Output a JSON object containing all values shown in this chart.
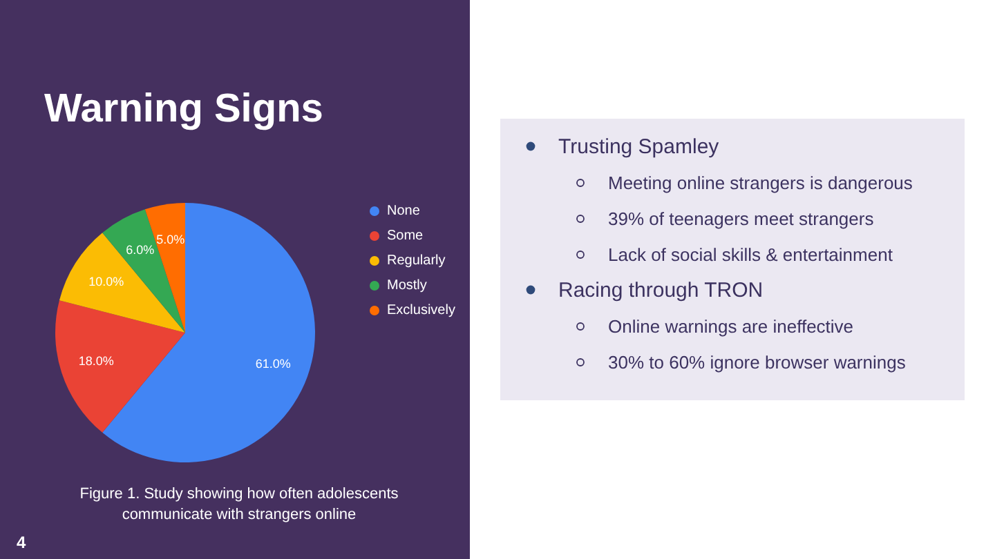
{
  "chart_data": [
    {
      "type": "pie",
      "title": "Warning Signs",
      "categories": [
        "None",
        "Some",
        "Regularly",
        "Mostly",
        "Exclusively"
      ],
      "values": [
        61,
        18,
        10,
        6,
        5
      ],
      "colors": [
        "#4285f4",
        "#ea4335",
        "#fbbc04",
        "#34a853",
        "#ff6d01"
      ],
      "value_labels": [
        "61.0%",
        "18.0%",
        "10.0%",
        "6.0%",
        "5.0%"
      ],
      "legend": "right",
      "annotations": [
        "Figure 1. Study showing how often adolescents",
        "communicate with strangers online",
        "4"
      ]
    },
    {
      "type": "other",
      "title": "Trusting Spamley",
      "annotations": [
        "Meeting online strangers is dangerous",
        "39% of teenagers meet strangers",
        "Lack of social skills & entertainment"
      ]
    },
    {
      "type": "other",
      "title": "Racing through TRON",
      "annotations": [
        "Online warnings are ineffective",
        "30% to 60% ignore browser warnings"
      ]
    }
  ]
}
